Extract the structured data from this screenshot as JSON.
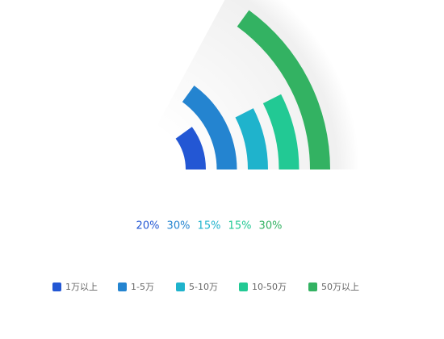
{
  "chart_data": {
    "type": "radial-bar",
    "categories": [
      "1万以上",
      "1-5万",
      "5-10万",
      "10-50万",
      "50万以上"
    ],
    "values": [
      20,
      30,
      15,
      15,
      30
    ],
    "value_labels": [
      "20%",
      "30%",
      "15%",
      "15%",
      "30%"
    ],
    "colors": [
      "#2357d4",
      "#2484d0",
      "#1fb3cc",
      "#22c994",
      "#33b262"
    ],
    "max_value": 100
  }
}
